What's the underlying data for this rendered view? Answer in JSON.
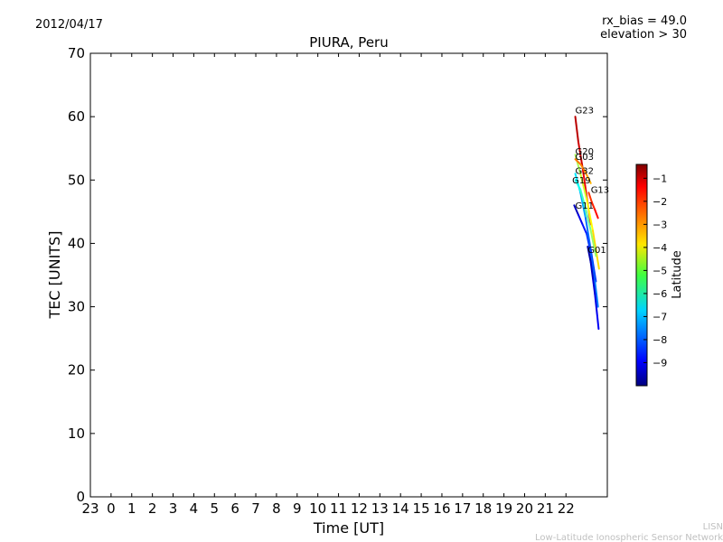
{
  "date": "2012/04/17",
  "rx_bias_label": "rx_bias = 49.0",
  "elevation_label": "elevation > 30",
  "footer_line1": "LISN",
  "footer_line2": "Low-Latitude Ionospheric Sensor Network",
  "colors": {
    "axis": "#000000",
    "background": "#ffffff",
    "footer": "#c0c0c0"
  },
  "chart_data": {
    "type": "line",
    "title": "PIURA, Peru",
    "xlabel": "Time [UT]",
    "ylabel": "TEC [UNITS]",
    "xlim": [
      -1,
      24
    ],
    "ylim": [
      0,
      70
    ],
    "grid": false,
    "x_ticks": [
      {
        "value": -1,
        "label": "23"
      },
      {
        "value": 0,
        "label": "0"
      },
      {
        "value": 1,
        "label": "1"
      },
      {
        "value": 2,
        "label": "2"
      },
      {
        "value": 3,
        "label": "3"
      },
      {
        "value": 4,
        "label": "4"
      },
      {
        "value": 5,
        "label": "5"
      },
      {
        "value": 6,
        "label": "6"
      },
      {
        "value": 7,
        "label": "7"
      },
      {
        "value": 8,
        "label": "8"
      },
      {
        "value": 9,
        "label": "9"
      },
      {
        "value": 10,
        "label": "10"
      },
      {
        "value": 11,
        "label": "11"
      },
      {
        "value": 12,
        "label": "12"
      },
      {
        "value": 13,
        "label": "13"
      },
      {
        "value": 14,
        "label": "14"
      },
      {
        "value": 15,
        "label": "15"
      },
      {
        "value": 16,
        "label": "16"
      },
      {
        "value": 17,
        "label": "17"
      },
      {
        "value": 18,
        "label": "18"
      },
      {
        "value": 19,
        "label": "19"
      },
      {
        "value": 20,
        "label": "20"
      },
      {
        "value": 21,
        "label": "21"
      },
      {
        "value": 22,
        "label": "22"
      }
    ],
    "y_ticks": [
      0,
      10,
      20,
      30,
      40,
      50,
      60,
      70
    ],
    "colorbar": {
      "label": "Latitude",
      "range": [
        -10,
        -0.4
      ],
      "ticks": [
        -1,
        -2,
        -3,
        -4,
        -5,
        -6,
        -7,
        -8,
        -9
      ]
    },
    "series": [
      {
        "name": "G23",
        "label_x": 22.45,
        "label_y": 60.5,
        "x": [
          22.45,
          22.6,
          22.8,
          23.0,
          23.2
        ],
        "y": [
          60.0,
          56.0,
          52.0,
          47.5,
          43.0
        ],
        "lat": [
          -0.9,
          -1.0,
          -1.3,
          -1.6,
          -2.0
        ]
      },
      {
        "name": "G20",
        "label_x": 22.45,
        "label_y": 54.0,
        "x": [
          22.45,
          22.7,
          23.0,
          23.3,
          23.6
        ],
        "y": [
          54.0,
          51.0,
          47.0,
          42.0,
          36.0
        ],
        "lat": [
          -5.0,
          -4.6,
          -4.2,
          -3.8,
          -3.5
        ]
      },
      {
        "name": "G03",
        "label_x": 22.45,
        "label_y": 53.2,
        "x": [
          22.45,
          22.7,
          22.9,
          23.05,
          23.2
        ],
        "y": [
          53.3,
          52.5,
          51.5,
          50.5,
          49.5
        ],
        "lat": [
          -2.6,
          -2.8,
          -3.0,
          -3.2,
          -3.4
        ]
      },
      {
        "name": "G32",
        "label_x": 22.45,
        "label_y": 51.0,
        "x": [
          22.45,
          22.7,
          22.95,
          23.2,
          23.45
        ],
        "y": [
          51.0,
          48.0,
          44.0,
          39.0,
          34.0
        ],
        "lat": [
          -6.3,
          -6.9,
          -7.5,
          -8.0,
          -8.6
        ]
      },
      {
        "name": "G19",
        "label_x": 22.3,
        "label_y": 49.5,
        "x": [
          22.45,
          22.7,
          22.95,
          23.2,
          23.45
        ],
        "y": [
          50.0,
          48.5,
          45.5,
          42.0,
          38.0
        ],
        "lat": [
          -6.5,
          -6.0,
          -5.6,
          -5.2,
          -4.8
        ]
      },
      {
        "name": "G13",
        "label_x": 23.2,
        "label_y": 48.0,
        "x": [
          23.1,
          23.25,
          23.4,
          23.55
        ],
        "y": [
          48.0,
          46.5,
          45.3,
          44.0
        ],
        "lat": [
          -2.2,
          -2.0,
          -1.8,
          -1.6
        ]
      },
      {
        "name": "G11",
        "label_x": 22.45,
        "label_y": 45.5,
        "x": [
          22.4,
          22.6,
          22.8,
          23.0,
          23.2,
          23.4,
          23.55
        ],
        "y": [
          46.0,
          44.5,
          43.0,
          41.5,
          38.5,
          34.0,
          30.0
        ],
        "lat": [
          -9.6,
          -9.2,
          -8.8,
          -8.4,
          -8.1,
          -7.8,
          -7.4
        ]
      },
      {
        "name": "G01",
        "label_x": 23.05,
        "label_y": 38.5,
        "x": [
          23.05,
          23.2,
          23.3,
          23.4,
          23.5,
          23.58
        ],
        "y": [
          39.5,
          37.0,
          34.5,
          32.0,
          29.0,
          26.5
        ],
        "lat": [
          -9.7,
          -9.5,
          -9.3,
          -9.1,
          -9.0,
          -8.8
        ]
      }
    ]
  }
}
